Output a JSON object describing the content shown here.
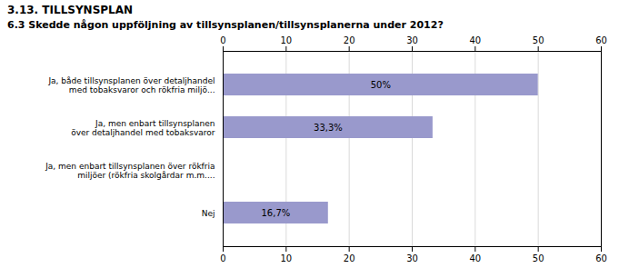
{
  "chart_data": {
    "type": "bar",
    "orientation": "horizontal",
    "title": "3.13. TILLSYNSPLAN",
    "subtitle": "6.3 Skedde någon uppföljning av tillsynsplanen/tillsynsplanerna under 2012?",
    "categories": [
      "Ja, både tillsynsplanen över detaljhandel\nmed tobaksvaror och rökfria miljö...",
      "Ja, men enbart tillsynsplanen\növer detaljhandel med tobaksvaror",
      "Ja, men enbart tillsynsplanen över rökfria\nmiljöer (rökfria skolgårdar m.m....",
      "Nej"
    ],
    "values": [
      50.0,
      33.3,
      0.0,
      16.7
    ],
    "value_labels": [
      "50%",
      "33,3%",
      null,
      "16,7%"
    ],
    "data_labels": true,
    "color": "#9999cc",
    "xlim": [
      0,
      60
    ],
    "xticks": [
      0,
      10,
      20,
      30,
      40,
      50,
      60
    ],
    "grid": true
  }
}
